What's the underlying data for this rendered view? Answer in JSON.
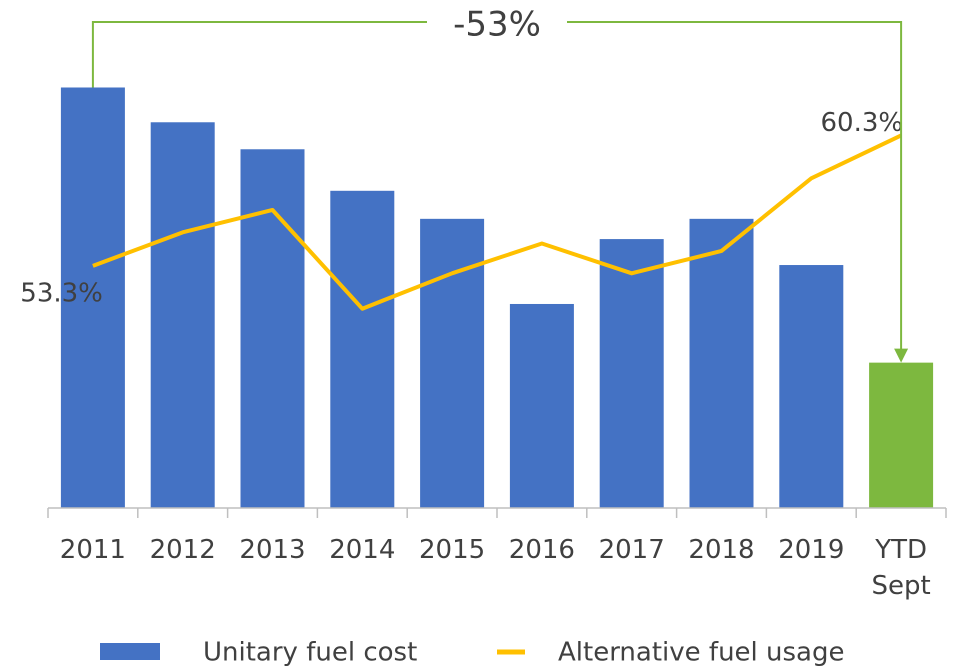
{
  "chart_data": {
    "type": "bar_line",
    "categories": [
      "2011",
      "2012",
      "2013",
      "2014",
      "2015",
      "2016",
      "2017",
      "2018",
      "2019",
      "YTD Sept"
    ],
    "series": [
      {
        "name": "Unitary fuel cost",
        "color": "#4472c4",
        "colors": [
          "#4472c4",
          "#4472c4",
          "#4472c4",
          "#4472c4",
          "#4472c4",
          "#4472c4",
          "#4472c4",
          "#4472c4",
          "#4472c4",
          "#7db83f"
        ],
        "values": [
          100,
          93.3,
          88.1,
          80.1,
          74.7,
          58.3,
          70.8,
          74.7,
          65.8,
          47
        ]
      },
      {
        "name": "Alternative fuel usage",
        "color": "#ffc000",
        "axis": "y2",
        "values": [
          53.3,
          55.1,
          56.3,
          51.0,
          52.9,
          54.5,
          52.9,
          54.1,
          58.0,
          60.3
        ],
        "value_labels": [
          "53.3%",
          null,
          null,
          null,
          null,
          null,
          null,
          null,
          null,
          "60.3%"
        ]
      }
    ],
    "ylim": [
      19,
      113
    ],
    "y2lim": [
      40.3,
      66.5
    ],
    "annotation": {
      "text": "-53%",
      "color": "#7db83f"
    },
    "legend": "bottom"
  }
}
